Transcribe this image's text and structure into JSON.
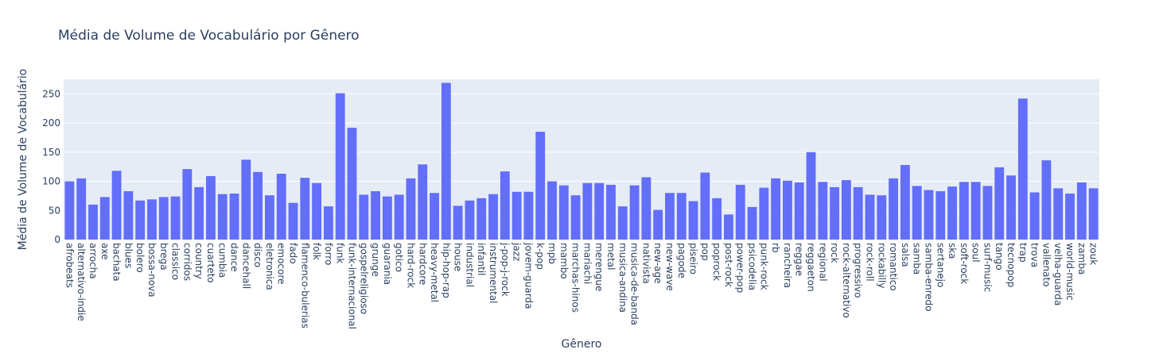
{
  "chart_data": {
    "type": "bar",
    "title": "Média de Volume de Vocabulário por Gênero",
    "xlabel": "Gênero",
    "ylabel": "Média de Volume de Vocabulário",
    "ylim": [
      0,
      275
    ],
    "yticks": [
      0,
      50,
      100,
      150,
      200,
      250
    ],
    "grid": true,
    "bar_color": "#636efa",
    "plot_bg": "#e5ecf6",
    "categories": [
      "afrobeats",
      "alternativo-indie",
      "arrocha",
      "axe",
      "bachata",
      "blues",
      "bolero",
      "bossa-nova",
      "brega",
      "classico",
      "corridos",
      "country",
      "cuarteto",
      "cumbia",
      "dance",
      "dancehall",
      "disco",
      "eletronica",
      "emocore",
      "fado",
      "flamenco-bulerias",
      "folk",
      "forro",
      "funk",
      "funk-internacional",
      "gospelreligioso",
      "grunge",
      "guarania",
      "gotico",
      "hard-rock",
      "hardcore",
      "heavy-metal",
      "hip-hop-rap",
      "house",
      "industrial",
      "infantil",
      "instrumental",
      "j-pop-j-rock",
      "jazz",
      "jovem-guarda",
      "k-pop",
      "mpb",
      "mambo",
      "marchas-hinos",
      "mariachi",
      "merengue",
      "metal",
      "musica-andina",
      "musica-de-banda",
      "nativista",
      "new-age",
      "new-wave",
      "pagode",
      "piseiro",
      "pop",
      "poprock",
      "post-rock",
      "power-pop",
      "psicodelia",
      "punk-rock",
      "rb",
      "rancheira",
      "reggae",
      "reggaeton",
      "regional",
      "rock",
      "rock-alternativo",
      "progressivo",
      "rock-roll",
      "rockabilly",
      "romantico",
      "salsa",
      "samba",
      "samba-enredo",
      "sertanejo",
      "ska",
      "soft-rock",
      "soul",
      "surf-music",
      "tango",
      "tecnopop",
      "trap",
      "trova",
      "vallenato",
      "velha-guarda",
      "world-music",
      "zamba",
      "zouk"
    ],
    "values": [
      100,
      105,
      60,
      73,
      118,
      83,
      67,
      69,
      73,
      74,
      121,
      90,
      109,
      78,
      79,
      137,
      116,
      76,
      113,
      63,
      106,
      97,
      57,
      251,
      192,
      77,
      83,
      74,
      77,
      105,
      129,
      80,
      269,
      58,
      67,
      71,
      78,
      117,
      82,
      82,
      185,
      100,
      93,
      76,
      97,
      97,
      94,
      57,
      93,
      107,
      51,
      80,
      80,
      66,
      115,
      71,
      43,
      94,
      56,
      89,
      105,
      101,
      98,
      150,
      99,
      90,
      102,
      90,
      77,
      76,
      105,
      128,
      92,
      85,
      83,
      91,
      99,
      99,
      92,
      124,
      110,
      242,
      81,
      136,
      88,
      79,
      98,
      88
    ]
  }
}
